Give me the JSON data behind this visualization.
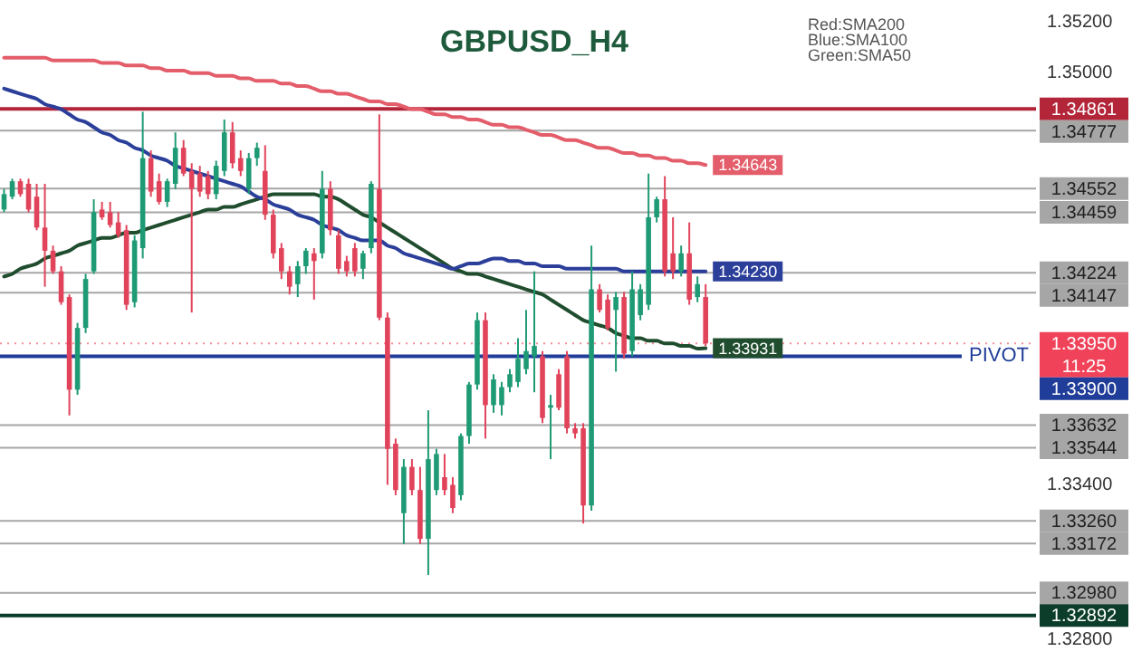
{
  "chart_data": {
    "type": "candlestick",
    "title": "GBPUSD_H4",
    "categories": [
      null,
      null,
      null,
      null,
      null,
      null,
      null,
      null,
      null,
      null,
      null,
      null,
      null,
      null,
      null,
      null,
      null,
      null,
      null,
      null,
      null,
      null,
      null,
      null,
      null,
      null,
      null,
      null,
      null,
      null,
      null,
      null,
      null,
      null,
      null,
      null,
      null,
      null,
      null,
      null,
      null,
      null,
      null,
      null,
      null,
      null,
      null,
      null,
      null,
      null,
      null,
      null,
      null,
      null,
      null,
      null,
      null,
      null,
      null,
      null,
      null,
      null,
      null,
      null,
      null,
      null,
      null,
      null,
      null,
      null,
      null,
      null,
      null,
      null,
      null,
      null,
      null,
      null,
      null,
      null,
      null,
      null,
      null,
      null,
      null,
      null,
      null,
      null,
      null,
      null,
      null,
      null,
      null,
      null,
      null,
      null,
      null,
      null,
      null,
      null,
      null,
      null,
      null,
      null,
      null,
      null,
      null,
      null,
      null,
      null,
      null,
      null,
      null,
      null,
      null,
      null,
      null,
      null,
      null,
      null,
      null,
      null,
      null,
      null,
      null,
      null,
      null
    ],
    "ohlc": [
      [
        1.3447,
        1.3455,
        1.3446,
        1.3453
      ],
      [
        1.3452,
        1.3459,
        1.3451,
        1.3458
      ],
      [
        1.3458,
        1.3459,
        1.3452,
        1.3453
      ],
      [
        1.3457,
        1.3459,
        1.3446,
        1.3447
      ],
      [
        1.3452,
        1.3457,
        1.3439,
        1.344
      ],
      [
        1.344,
        1.3457,
        1.3417,
        1.3431
      ],
      [
        1.3431,
        1.3433,
        1.3422,
        1.3423
      ],
      [
        1.3423,
        1.3425,
        1.341,
        1.3411
      ],
      [
        1.3413,
        1.3414,
        1.3367,
        1.3377
      ],
      [
        1.3377,
        1.3403,
        1.3375,
        1.3401
      ],
      [
        1.3401,
        1.3422,
        1.3399,
        1.342
      ],
      [
        1.3423,
        1.3451,
        1.3422,
        1.3446
      ],
      [
        1.3447,
        1.345,
        1.3443,
        1.3444
      ],
      [
        1.3446,
        1.345,
        1.344,
        1.3441
      ],
      [
        1.3442,
        1.3446,
        1.3436,
        1.3437
      ],
      [
        1.3439,
        1.3441,
        1.3408,
        1.341
      ],
      [
        1.3411,
        1.3437,
        1.3409,
        1.3435
      ],
      [
        1.3432,
        1.3485,
        1.3428,
        1.3467
      ],
      [
        1.3467,
        1.347,
        1.3452,
        1.3454
      ],
      [
        1.3458,
        1.3461,
        1.3449,
        1.345
      ],
      [
        1.345,
        1.3459,
        1.3448,
        1.3458
      ],
      [
        1.3457,
        1.3477,
        1.3455,
        1.3471
      ],
      [
        1.3471,
        1.3474,
        1.346,
        1.3461
      ],
      [
        1.3462,
        1.3465,
        1.3407,
        1.3455
      ],
      [
        1.3461,
        1.3464,
        1.3452,
        1.3454
      ],
      [
        1.346,
        1.3462,
        1.3451,
        1.3453
      ],
      [
        1.3453,
        1.3466,
        1.3451,
        1.3464
      ],
      [
        1.3462,
        1.3482,
        1.346,
        1.3477
      ],
      [
        1.3477,
        1.3481,
        1.3463,
        1.3465
      ],
      [
        1.3467,
        1.347,
        1.346,
        1.3462
      ],
      [
        1.3455,
        1.3469,
        1.3453,
        1.3467
      ],
      [
        1.3467,
        1.3473,
        1.3464,
        1.3471
      ],
      [
        1.3462,
        1.3472,
        1.3443,
        1.3445
      ],
      [
        1.3445,
        1.3447,
        1.3428,
        1.343
      ],
      [
        1.3432,
        1.3434,
        1.342,
        1.3423
      ],
      [
        1.3423,
        1.3425,
        1.3414,
        1.3417
      ],
      [
        1.3418,
        1.3427,
        1.3413,
        1.3425
      ],
      [
        1.3425,
        1.3432,
        1.3422,
        1.3431
      ],
      [
        1.343,
        1.3432,
        1.3412,
        1.3427
      ],
      [
        1.343,
        1.3462,
        1.3428,
        1.3455
      ],
      [
        1.3455,
        1.3458,
        1.3437,
        1.3439
      ],
      [
        1.3437,
        1.3439,
        1.3422,
        1.3424
      ],
      [
        1.3427,
        1.3429,
        1.3421,
        1.3423
      ],
      [
        1.3432,
        1.3434,
        1.3421,
        1.3423
      ],
      [
        1.3424,
        1.3431,
        1.342,
        1.343
      ],
      [
        1.3432,
        1.3458,
        1.343,
        1.3457
      ],
      [
        1.3455,
        1.3484,
        1.3404,
        1.3405
      ],
      [
        1.3405,
        1.3407,
        1.334,
        1.3354
      ],
      [
        1.3356,
        1.3358,
        1.3336,
        1.3338
      ],
      [
        1.3329,
        1.335,
        1.3317,
        1.3347
      ],
      [
        1.3347,
        1.335,
        1.3336,
        1.3338
      ],
      [
        1.3338,
        1.3347,
        1.3317,
        1.3319
      ],
      [
        1.3319,
        1.3369,
        1.3305,
        1.335
      ],
      [
        1.3338,
        1.3354,
        1.3336,
        1.3352
      ],
      [
        1.3343,
        1.3352,
        1.3336,
        1.3338
      ],
      [
        1.334,
        1.3343,
        1.3329,
        1.3331
      ],
      [
        1.3336,
        1.336,
        1.3334,
        1.3359
      ],
      [
        1.3359,
        1.338,
        1.3356,
        1.3379
      ],
      [
        1.3379,
        1.3407,
        1.3377,
        1.3404
      ],
      [
        1.3404,
        1.3407,
        1.3358,
        1.3371
      ],
      [
        1.3371,
        1.3383,
        1.3368,
        1.3381
      ],
      [
        1.3371,
        1.338,
        1.3367,
        1.3378
      ],
      [
        1.3378,
        1.3385,
        1.3376,
        1.3383
      ],
      [
        1.338,
        1.3397,
        1.3378,
        1.3389
      ],
      [
        1.3385,
        1.3408,
        1.3383,
        1.3392
      ],
      [
        1.339,
        1.3423,
        1.3376,
        1.3394
      ],
      [
        1.339,
        1.3392,
        1.3364,
        1.3366
      ],
      [
        1.337,
        1.3375,
        1.335,
        1.3371
      ],
      [
        1.3383,
        1.3385,
        1.3369,
        1.337
      ],
      [
        1.339,
        1.3392,
        1.336,
        1.3362
      ],
      [
        1.3362,
        1.3364,
        1.3358,
        1.336
      ],
      [
        1.3362,
        1.3364,
        1.3325,
        1.3332
      ],
      [
        1.3332,
        1.3433,
        1.333,
        1.3416
      ],
      [
        1.3416,
        1.3418,
        1.3407,
        1.3408
      ],
      [
        1.3412,
        1.3414,
        1.34,
        1.3401
      ],
      [
        1.3408,
        1.3415,
        1.3384,
        1.3413
      ],
      [
        1.3413,
        1.3415,
        1.3389,
        1.3391
      ],
      [
        1.3392,
        1.3423,
        1.339,
        1.3416
      ],
      [
        1.3406,
        1.3418,
        1.3404,
        1.3416
      ],
      [
        1.341,
        1.3461,
        1.3408,
        1.3444
      ],
      [
        1.3444,
        1.3452,
        1.3442,
        1.3451
      ],
      [
        1.3451,
        1.346,
        1.3421,
        1.3423
      ],
      [
        1.343,
        1.3444,
        1.342,
        1.3423
      ],
      [
        1.3423,
        1.3433,
        1.3421,
        1.343
      ],
      [
        1.343,
        1.3442,
        1.341,
        1.3412
      ],
      [
        1.3413,
        1.3421,
        1.3411,
        1.3418
      ],
      [
        1.3413,
        1.3418,
        1.3394,
        1.3395
      ],
      null,
      null,
      null,
      null,
      null,
      null,
      null,
      null,
      null,
      null,
      null,
      null,
      null,
      null,
      null,
      null,
      null,
      null,
      null,
      null,
      null,
      null,
      null,
      null,
      null,
      null,
      null,
      null,
      null,
      null,
      null,
      null,
      null,
      null,
      null,
      null,
      null,
      null,
      null,
      null
    ],
    "series": [
      {
        "type": "line",
        "color": "#e35d6a",
        "values": [
          1.3506,
          1.3506,
          1.3506,
          1.3506,
          1.3506,
          1.3506,
          1.3505,
          1.3505,
          1.3505,
          1.3505,
          1.3505,
          1.3505,
          1.3504,
          1.3504,
          1.3504,
          1.3503,
          1.3503,
          1.3503,
          1.3502,
          1.3502,
          1.3501,
          1.3501,
          1.3501,
          1.35,
          1.35,
          1.35,
          1.3499,
          1.3499,
          1.3499,
          1.3498,
          1.3498,
          1.3497,
          1.3497,
          1.3497,
          1.3496,
          1.3496,
          1.3495,
          1.3495,
          1.3494,
          1.3493,
          1.3493,
          1.3492,
          1.3492,
          1.3491,
          1.349,
          1.3489,
          1.3489,
          1.3488,
          1.3488,
          1.3487,
          1.3486,
          1.3486,
          1.3485,
          1.3484,
          1.3484,
          1.3483,
          1.3483,
          1.3482,
          1.3482,
          1.3481,
          1.348,
          1.348,
          1.3479,
          1.3479,
          1.3478,
          1.3477,
          1.3476,
          1.3476,
          1.3475,
          1.3474,
          1.3474,
          1.3473,
          1.3472,
          1.3471,
          1.3471,
          1.347,
          1.3469,
          1.3469,
          1.3468,
          1.3468,
          1.3467,
          1.3467,
          1.3466,
          1.3466,
          1.3465,
          1.3465,
          1.34643,
          null,
          null,
          null,
          null,
          null,
          null,
          null,
          null,
          null,
          null,
          null,
          null,
          null,
          null,
          null,
          null,
          null,
          null,
          null,
          null,
          null,
          null,
          null,
          null,
          null,
          null,
          null,
          null,
          null,
          null,
          null,
          null,
          null,
          null,
          null,
          null,
          null,
          null,
          null,
          null
        ],
        "value_labels": [
          null,
          null,
          null,
          null,
          null,
          null,
          null,
          null,
          null,
          null,
          null,
          null,
          null,
          null,
          null,
          null,
          null,
          null,
          null,
          null,
          null,
          null,
          null,
          null,
          null,
          null,
          null,
          null,
          null,
          null,
          null,
          null,
          null,
          null,
          null,
          null,
          null,
          null,
          null,
          null,
          null,
          null,
          null,
          null,
          null,
          null,
          null,
          null,
          null,
          null,
          null,
          null,
          null,
          null,
          null,
          null,
          null,
          null,
          null,
          null,
          null,
          null,
          null,
          null,
          null,
          null,
          null,
          null,
          null,
          null,
          null,
          null,
          null,
          null,
          null,
          null,
          null,
          null,
          null,
          null,
          null,
          null,
          null,
          null,
          null,
          null,
          "1.34643",
          null,
          null,
          null,
          null,
          null,
          null,
          null,
          null,
          null,
          null,
          null,
          null,
          null,
          null,
          null,
          null,
          null,
          null,
          null,
          null,
          null,
          null,
          null,
          null,
          null,
          null,
          null,
          null,
          null,
          null,
          null,
          null,
          null,
          null,
          null,
          null,
          null,
          null,
          null,
          null
        ]
      },
      {
        "type": "line",
        "color": "#2b3f9a",
        "values": [
          1.3494,
          1.3493,
          1.3492,
          1.3491,
          1.349,
          1.3488,
          1.3487,
          1.3486,
          1.3484,
          1.3482,
          1.3481,
          1.3479,
          1.3477,
          1.3476,
          1.3474,
          1.3473,
          1.3471,
          1.347,
          1.3468,
          1.3467,
          1.3466,
          1.3464,
          1.3463,
          1.3462,
          1.3461,
          1.346,
          1.3459,
          1.3458,
          1.3457,
          1.3456,
          1.3454,
          1.3452,
          1.3451,
          1.3449,
          1.3448,
          1.3447,
          1.3445,
          1.3444,
          1.3443,
          1.3441,
          1.344,
          1.3439,
          1.3437,
          1.3436,
          1.3435,
          1.3435,
          1.3435,
          1.3433,
          1.3432,
          1.343,
          1.3429,
          1.3428,
          1.3427,
          1.3426,
          1.3425,
          1.3424,
          1.3425,
          1.3426,
          1.3426,
          1.3427,
          1.3428,
          1.3428,
          1.3427,
          1.3427,
          1.3426,
          1.3426,
          1.3425,
          1.3425,
          1.3425,
          1.3424,
          1.3424,
          1.3424,
          1.3424,
          1.3424,
          1.3424,
          1.3424,
          1.3423,
          1.3423,
          1.3423,
          1.3423,
          1.3423,
          1.3423,
          1.3423,
          1.3423,
          1.3423,
          1.3423,
          1.3423,
          null,
          null,
          null,
          null,
          null,
          null,
          null,
          null,
          null,
          null,
          null,
          null,
          null,
          null,
          null,
          null,
          null,
          null,
          null,
          null,
          null,
          null,
          null,
          null,
          null,
          null,
          null,
          null,
          null,
          null,
          null,
          null,
          null,
          null,
          null,
          null,
          null,
          null,
          null,
          null
        ],
        "value_labels": [
          null,
          null,
          null,
          null,
          null,
          null,
          null,
          null,
          null,
          null,
          null,
          null,
          null,
          null,
          null,
          null,
          null,
          null,
          null,
          null,
          null,
          null,
          null,
          null,
          null,
          null,
          null,
          null,
          null,
          null,
          null,
          null,
          null,
          null,
          null,
          null,
          null,
          null,
          null,
          null,
          null,
          null,
          null,
          null,
          null,
          null,
          null,
          null,
          null,
          null,
          null,
          null,
          null,
          null,
          null,
          null,
          null,
          null,
          null,
          null,
          null,
          null,
          null,
          null,
          null,
          null,
          null,
          null,
          null,
          null,
          null,
          null,
          null,
          null,
          null,
          null,
          null,
          null,
          null,
          null,
          null,
          null,
          null,
          null,
          null,
          null,
          "1.34230",
          null,
          null,
          null,
          null,
          null,
          null,
          null,
          null,
          null,
          null,
          null,
          null,
          null,
          null,
          null,
          null,
          null,
          null,
          null,
          null,
          null,
          null,
          null,
          null,
          null,
          null,
          null,
          null,
          null,
          null,
          null,
          null,
          null,
          null,
          null,
          null,
          null,
          null,
          null,
          null
        ]
      },
      {
        "type": "line",
        "color": "#1f4d2e",
        "values": [
          1.3421,
          1.3422,
          1.3424,
          1.3425,
          1.3426,
          1.3428,
          1.3429,
          1.343,
          1.3431,
          1.3433,
          1.3434,
          1.3435,
          1.3436,
          1.3436,
          1.3437,
          1.3438,
          1.3438,
          1.3439,
          1.344,
          1.3441,
          1.3442,
          1.3443,
          1.3444,
          1.3445,
          1.3446,
          1.3447,
          1.3447,
          1.3448,
          1.3448,
          1.3449,
          1.345,
          1.3451,
          1.3452,
          1.3453,
          1.3453,
          1.3453,
          1.3453,
          1.3453,
          1.3453,
          1.3452,
          1.3452,
          1.3451,
          1.3449,
          1.3447,
          1.3445,
          1.3444,
          1.3442,
          1.344,
          1.3438,
          1.3436,
          1.3434,
          1.3432,
          1.343,
          1.3428,
          1.3426,
          1.3424,
          1.3423,
          1.3422,
          1.3422,
          1.3421,
          1.342,
          1.3419,
          1.3418,
          1.3417,
          1.3416,
          1.3415,
          1.3414,
          1.3412,
          1.341,
          1.3408,
          1.3406,
          1.3404,
          1.3403,
          1.3402,
          1.3401,
          1.3399,
          1.3398,
          1.3397,
          1.3397,
          1.3396,
          1.3396,
          1.3395,
          1.3395,
          1.3394,
          1.3394,
          1.3393,
          1.33931,
          null,
          null,
          null,
          null,
          null,
          null,
          null,
          null,
          null,
          null,
          null,
          null,
          null,
          null,
          null,
          null,
          null,
          null,
          null,
          null,
          null,
          null,
          null,
          null,
          null,
          null,
          null,
          null,
          null,
          null,
          null,
          null,
          null,
          null,
          null,
          null,
          null,
          null,
          null,
          null
        ],
        "value_labels": [
          null,
          null,
          null,
          null,
          null,
          null,
          null,
          null,
          null,
          null,
          null,
          null,
          null,
          null,
          null,
          null,
          null,
          null,
          null,
          null,
          null,
          null,
          null,
          null,
          null,
          null,
          null,
          null,
          null,
          null,
          null,
          null,
          null,
          null,
          null,
          null,
          null,
          null,
          null,
          null,
          null,
          null,
          null,
          null,
          null,
          null,
          null,
          null,
          null,
          null,
          null,
          null,
          null,
          null,
          null,
          null,
          null,
          null,
          null,
          null,
          null,
          null,
          null,
          null,
          null,
          null,
          null,
          null,
          null,
          null,
          null,
          null,
          null,
          null,
          null,
          null,
          null,
          null,
          null,
          null,
          null,
          null,
          null,
          null,
          null,
          null,
          "1.33931",
          null,
          null,
          null,
          null,
          null,
          null,
          null,
          null,
          null,
          null,
          null,
          null,
          null,
          null,
          null,
          null,
          null,
          null,
          null,
          null,
          null,
          null,
          null,
          null,
          null,
          null,
          null,
          null,
          null,
          null,
          null,
          null,
          null,
          null,
          null,
          null,
          null,
          null,
          null,
          null
        ]
      }
    ],
    "ylim": [
      1.328,
      1.352
    ],
    "yticks": [
      {
        "value": 1.352,
        "label": "1.35200"
      },
      {
        "value": 1.35,
        "label": "1.35000"
      },
      {
        "value": 1.334,
        "label": "1.33400"
      },
      {
        "value": 1.328,
        "label": "1.32800"
      }
    ],
    "tick_labels": "y",
    "ref_lines": [
      {
        "axis": "y",
        "value": 1.34861,
        "label": "1.34861",
        "color": "#b3263a"
      },
      {
        "axis": "y",
        "value": 1.34777,
        "label": "1.34777",
        "color": "#a6a6a6"
      },
      {
        "axis": "y",
        "value": 1.34552,
        "label": "1.34552",
        "color": "#a6a6a6"
      },
      {
        "axis": "y",
        "value": 1.34459,
        "label": "1.34459",
        "color": "#a6a6a6"
      },
      {
        "axis": "y",
        "value": 1.34224,
        "label": "1.34224",
        "color": "#a6a6a6"
      },
      {
        "axis": "y",
        "value": 1.34147,
        "label": "1.34147",
        "color": "#a6a6a6"
      },
      {
        "axis": "y",
        "value": 1.3395,
        "label": "1.33950\n11:25",
        "color": "#f0435a",
        "line_style": "dotted"
      },
      {
        "axis": "y",
        "value": 1.339,
        "label": "PIVOT 1.33900",
        "color": "#1f3d99"
      },
      {
        "axis": "y",
        "value": 1.33632,
        "label": "1.33632",
        "color": "#a6a6a6"
      },
      {
        "axis": "y",
        "value": 1.33544,
        "label": "1.33544",
        "color": "#a6a6a6"
      },
      {
        "axis": "y",
        "value": 1.3326,
        "label": "1.33260",
        "color": "#a6a6a6"
      },
      {
        "axis": "y",
        "value": 1.33172,
        "label": "1.33172",
        "color": "#a6a6a6"
      },
      {
        "axis": "y",
        "value": 1.3298,
        "label": "1.32980",
        "color": "#a6a6a6"
      },
      {
        "axis": "y",
        "value": 1.32892,
        "label": "1.32892",
        "color": "#0b3d2a"
      }
    ],
    "annotations": [
      "Red:SMA200",
      "Blue:SMA100",
      "Green:SMA50"
    ]
  }
}
